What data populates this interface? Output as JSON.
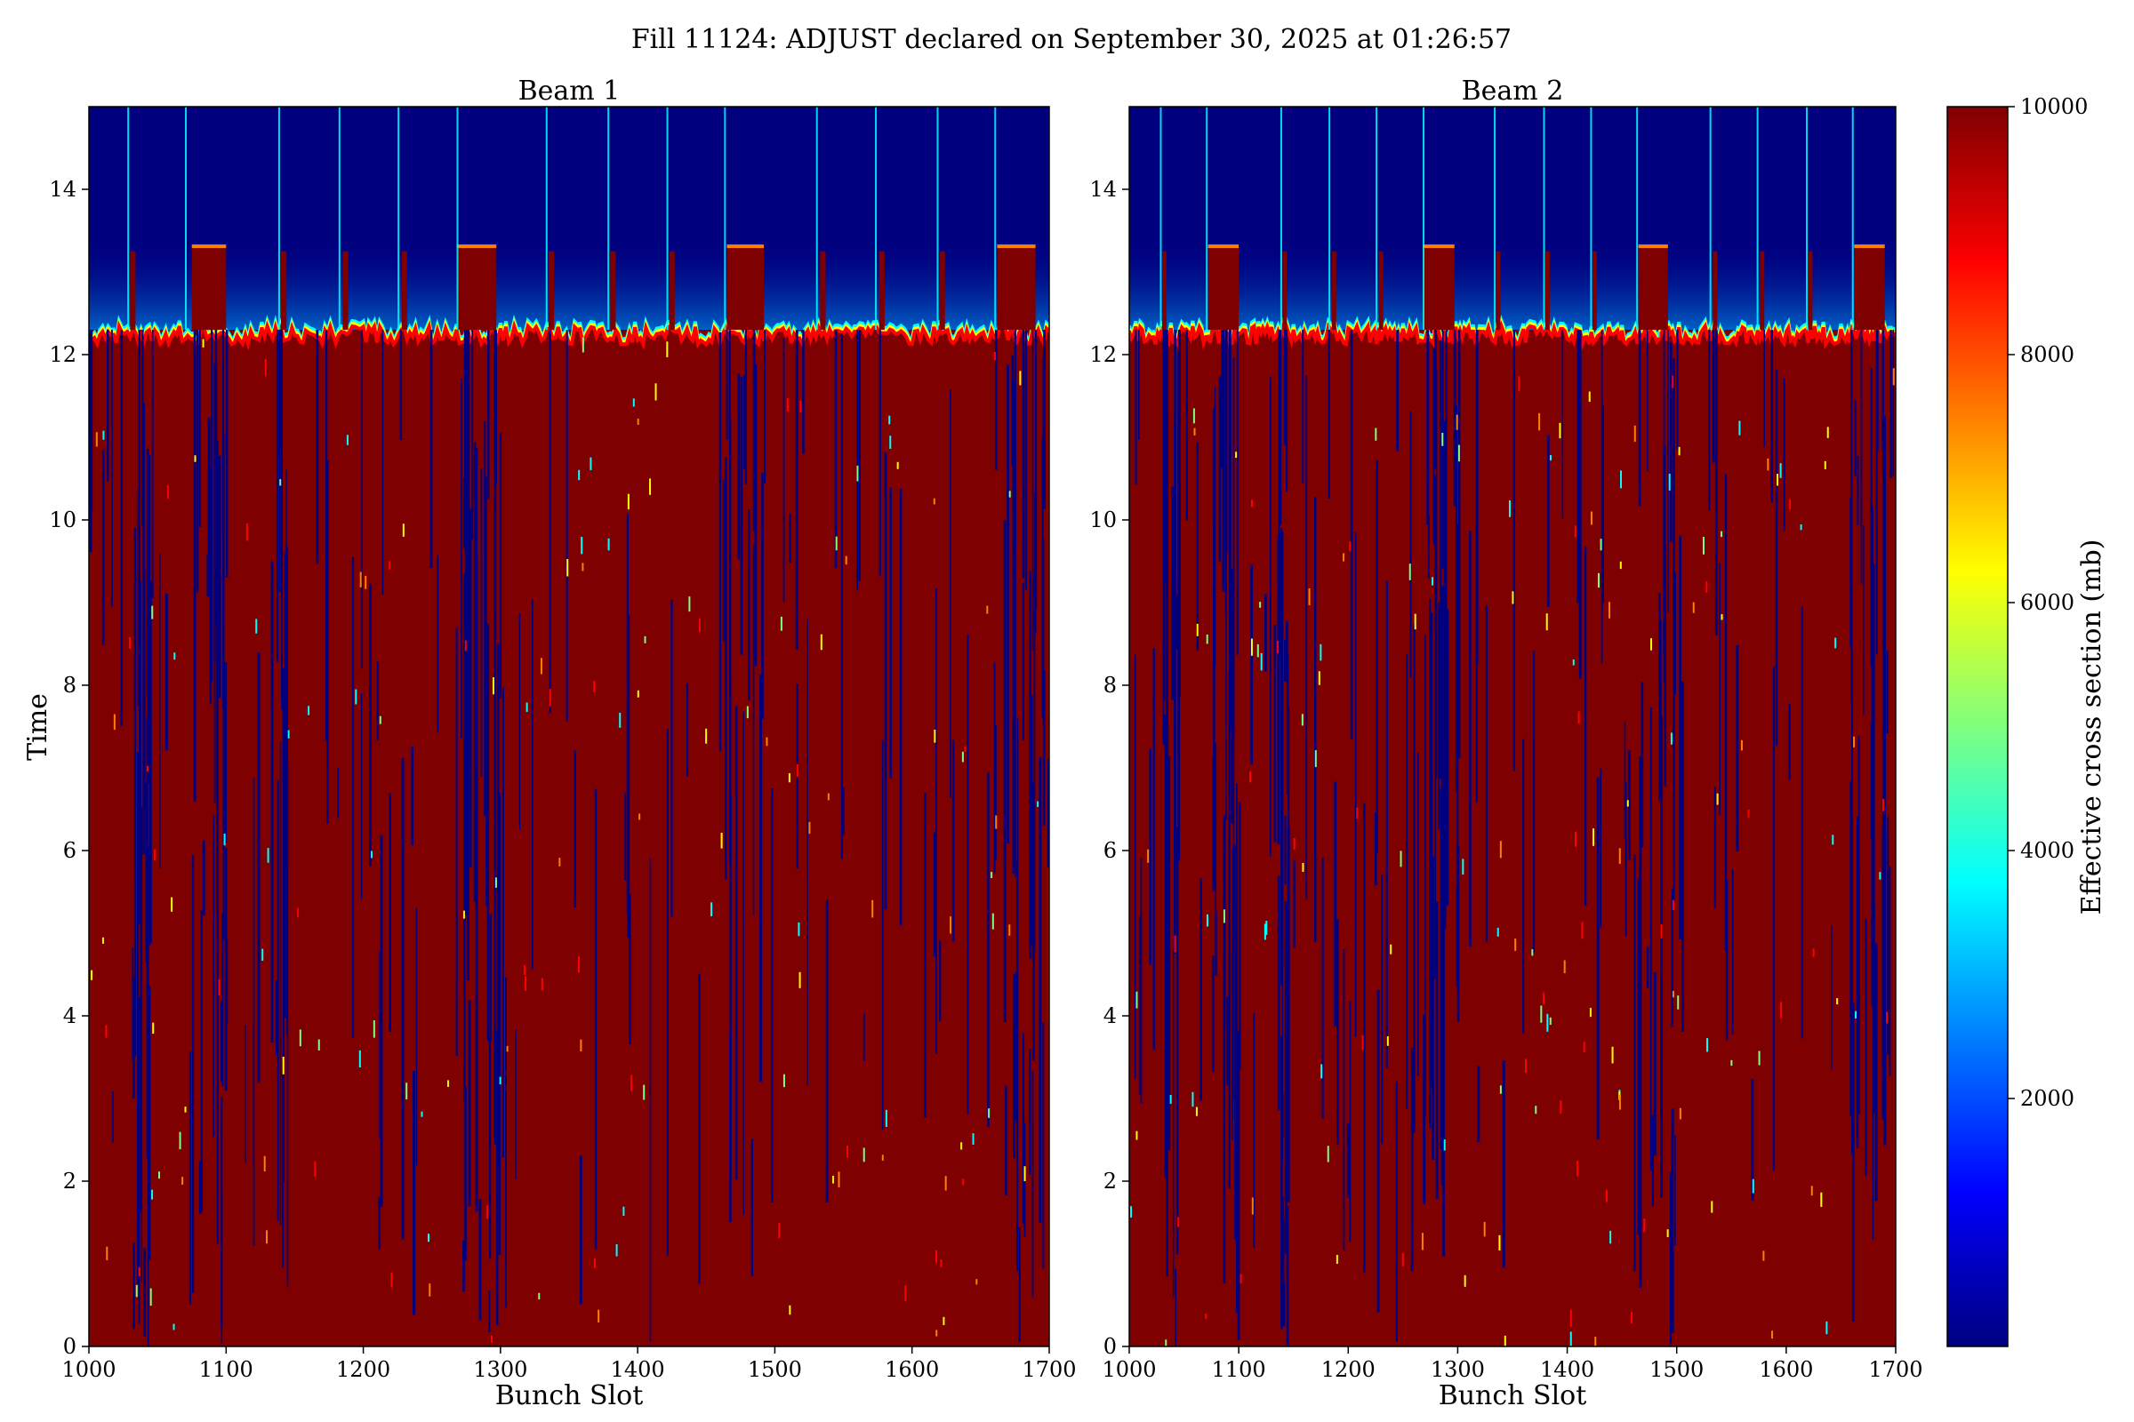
{
  "figure": {
    "title": "Fill 11124: ADJUST declared on September 30, 2025 at 01:26:57"
  },
  "colors": {
    "jet": [
      "#00007f",
      "#0000ff",
      "#007fff",
      "#00ffff",
      "#7fff7f",
      "#ffff00",
      "#ff7f00",
      "#ff0000",
      "#7f0000"
    ],
    "background": "#ffffff"
  },
  "colorbar": {
    "label": "Effective cross section (mb)",
    "range": [
      0,
      10000
    ],
    "ticks": [
      2000,
      4000,
      6000,
      8000,
      10000
    ],
    "tick_labels": [
      "2000",
      "4000",
      "6000",
      "8000",
      "10000"
    ]
  },
  "chart_data": [
    {
      "type": "heatmap",
      "title": "Beam 1",
      "xlabel": "Bunch Slot",
      "ylabel": "Time",
      "xlim": [
        1000,
        1700
      ],
      "ylim": [
        0,
        15
      ],
      "xticks": [
        1000,
        1100,
        1200,
        1300,
        1400,
        1500,
        1600,
        1700
      ],
      "xtick_labels": [
        "1000",
        "1100",
        "1200",
        "1300",
        "1400",
        "1500",
        "1600",
        "1700"
      ],
      "yticks": [
        0,
        2,
        4,
        6,
        8,
        10,
        12,
        14
      ],
      "ytick_labels": [
        "0",
        "2",
        "4",
        "6",
        "8",
        "10",
        "12",
        "14"
      ],
      "colormap": "jet",
      "value_range": [
        0,
        10000
      ],
      "transition_time": 12.3,
      "bunch_trains": [
        {
          "start": 1075,
          "end": 1100,
          "top": 13.3
        },
        {
          "start": 1268,
          "end": 1297,
          "top": 13.3
        },
        {
          "start": 1465,
          "end": 1492,
          "top": 13.3
        },
        {
          "start": 1662,
          "end": 1690,
          "top": 13.3
        }
      ],
      "bright_streak_slots": [
        1028,
        1070,
        1138,
        1182,
        1225,
        1268,
        1333,
        1378,
        1421,
        1463,
        1530,
        1573,
        1618,
        1660
      ],
      "small_peak_slots": [
        1030,
        1140,
        1185,
        1228,
        1335,
        1380,
        1423,
        1533,
        1576,
        1620
      ]
    },
    {
      "type": "heatmap",
      "title": "Beam 2",
      "xlabel": "Bunch Slot",
      "xlim": [
        1000,
        1700
      ],
      "ylim": [
        0,
        15
      ],
      "xticks": [
        1000,
        1100,
        1200,
        1300,
        1400,
        1500,
        1600,
        1700
      ],
      "xtick_labels": [
        "1000",
        "1100",
        "1200",
        "1300",
        "1400",
        "1500",
        "1600",
        "1700"
      ],
      "yticks": [
        0,
        2,
        4,
        6,
        8,
        10,
        12,
        14
      ],
      "ytick_labels": [
        "0",
        "2",
        "4",
        "6",
        "8",
        "10",
        "12",
        "14"
      ],
      "colormap": "jet",
      "value_range": [
        0,
        10000
      ],
      "transition_time": 12.3,
      "bunch_trains": [
        {
          "start": 1072,
          "end": 1100,
          "top": 13.3
        },
        {
          "start": 1268,
          "end": 1297,
          "top": 13.3
        },
        {
          "start": 1465,
          "end": 1492,
          "top": 13.3
        },
        {
          "start": 1662,
          "end": 1690,
          "top": 13.3
        }
      ],
      "bright_streak_slots": [
        1028,
        1070,
        1138,
        1182,
        1225,
        1268,
        1333,
        1378,
        1421,
        1463,
        1530,
        1573,
        1618,
        1660
      ],
      "small_peak_slots": [
        1030,
        1140,
        1185,
        1228,
        1335,
        1380,
        1423,
        1533,
        1576,
        1620
      ]
    }
  ]
}
